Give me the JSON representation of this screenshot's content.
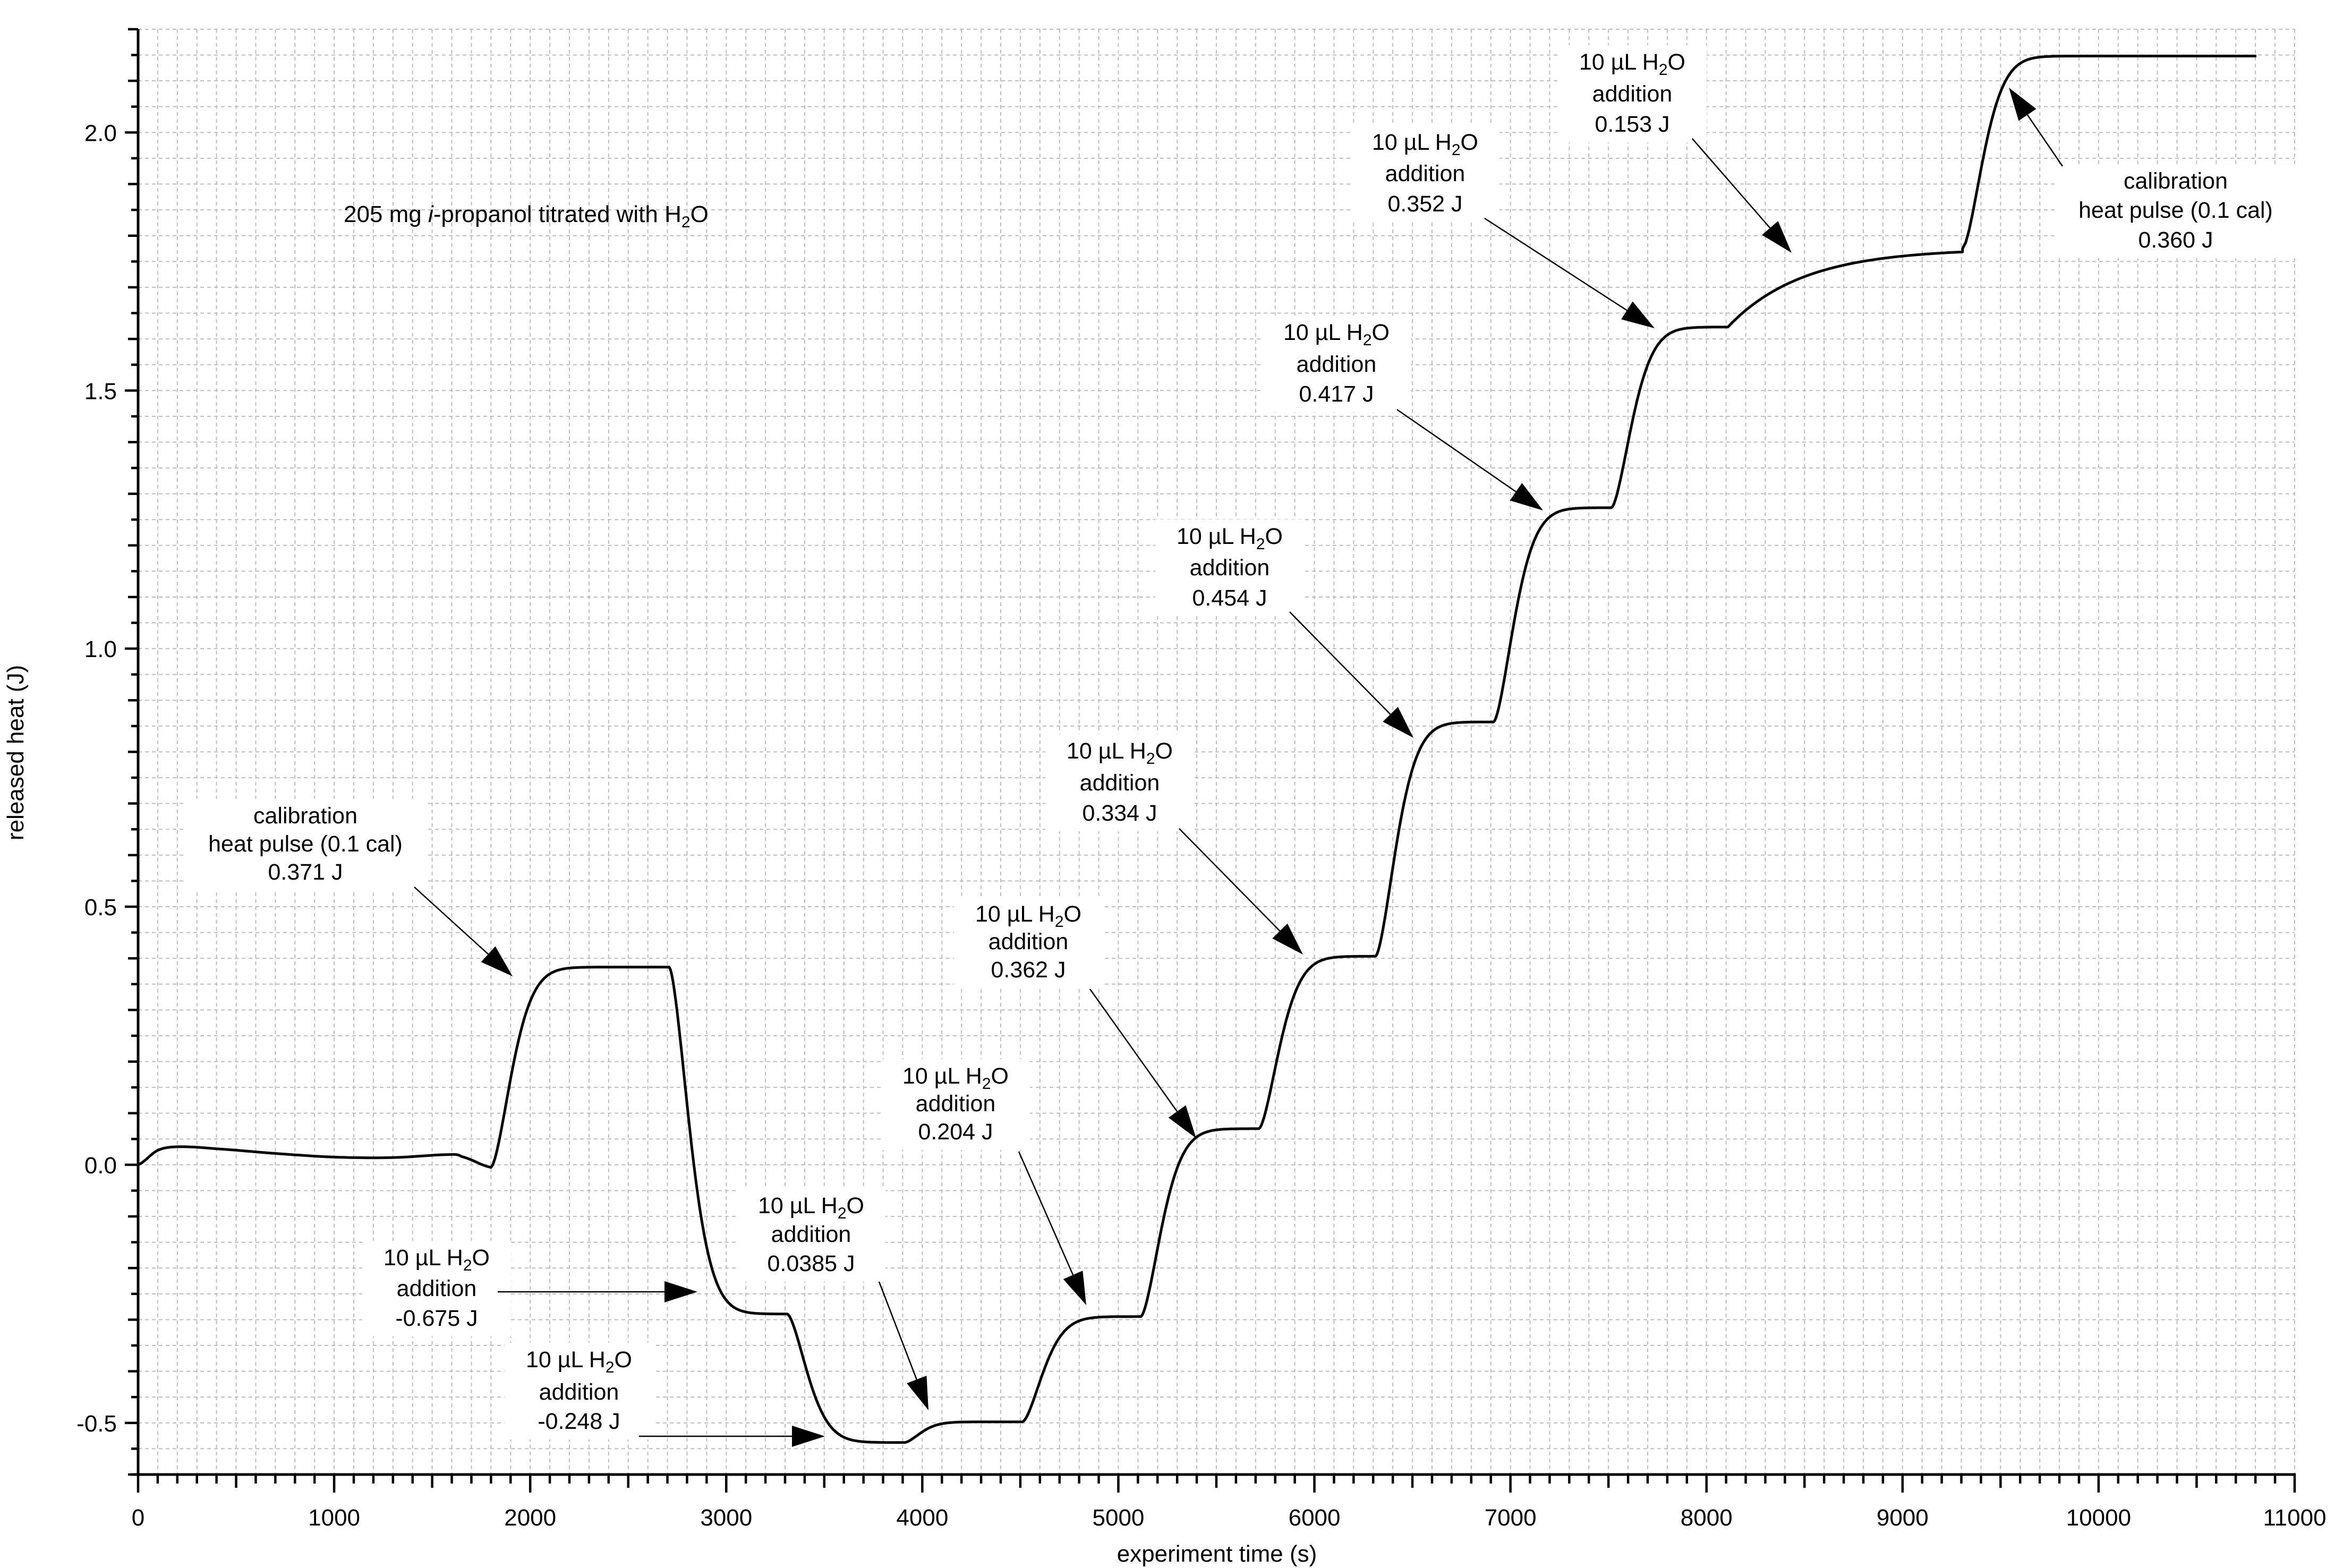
{
  "chart_data": {
    "type": "line",
    "title": "205 mg i-propanol titrated with H2O",
    "title_parts": {
      "prefix": "205 mg ",
      "italic": "i",
      "middle": "-propanol titrated with H",
      "subscript": "2",
      "suffix": "O"
    },
    "xlabel": "experiment time (s)",
    "ylabel": "released heat (J)",
    "xlim": [
      0,
      11000
    ],
    "ylim": [
      -0.6,
      2.2
    ],
    "grid": true,
    "x_ticks": [
      0,
      1000,
      2000,
      3000,
      4000,
      5000,
      6000,
      7000,
      8000,
      9000,
      10000,
      11000
    ],
    "x_tick_labels": [
      "0",
      "1000",
      "2000",
      "3000",
      "4000",
      "5000",
      "6000",
      "7000",
      "8000",
      "9000",
      "10000",
      "11000"
    ],
    "y_ticks": [
      -0.5,
      0.0,
      0.5,
      1.0,
      1.5,
      2.0
    ],
    "y_tick_labels": [
      "-0.5",
      "0.0",
      "0.5",
      "1.0",
      "1.5",
      "2.0"
    ],
    "x_minor_step": 100,
    "y_minor_step": 0.05,
    "series": [
      {
        "name": "released heat",
        "color": "#000000",
        "baseline": {
          "x": [
            0,
            100,
            200,
            400,
            700,
            1000,
            1300,
            1600,
            1650,
            1800
          ],
          "y": [
            0.0,
            0.028,
            0.035,
            0.031,
            0.022,
            0.015,
            0.014,
            0.02,
            0.016,
            -0.005
          ]
        },
        "steps": [
          {
            "start": 1800,
            "from": -0.005,
            "to": 0.383,
            "end": 2709
          },
          {
            "start": 2709,
            "from": 0.383,
            "to": -0.289,
            "end": 3311
          },
          {
            "start": 3311,
            "from": -0.289,
            "to": -0.538,
            "end": 3910
          },
          {
            "start": 3910,
            "from": -0.538,
            "to": -0.498,
            "end": 4511
          },
          {
            "start": 4511,
            "from": -0.498,
            "to": -0.294,
            "end": 5115
          },
          {
            "start": 5115,
            "from": -0.294,
            "to": 0.07,
            "end": 5717
          },
          {
            "start": 5717,
            "from": 0.07,
            "to": 0.404,
            "end": 6312
          },
          {
            "start": 6312,
            "from": 0.404,
            "to": 0.858,
            "end": 6914
          },
          {
            "start": 6914,
            "from": 0.858,
            "to": 1.273,
            "end": 7515
          },
          {
            "start": 7515,
            "from": 1.273,
            "to": 1.623,
            "end": 8109
          },
          {
            "start": 8109,
            "from": 1.623,
            "to": 1.775,
            "end": 9306
          },
          {
            "start": 9306,
            "from": 1.775,
            "to": 2.148,
            "end": 10805
          }
        ]
      }
    ],
    "annotations": [
      {
        "lines": [
          "calibration",
          "heat pulse (0.1 cal)",
          "0.371 J"
        ],
        "has_formula": false
      },
      {
        "lines": [
          "10 µL H",
          "addition",
          "-0.675 J"
        ],
        "has_formula": true
      },
      {
        "lines": [
          "10 µL H",
          "addition",
          "-0.248 J"
        ],
        "has_formula": true
      },
      {
        "lines": [
          "10 µL H",
          "addition",
          "0.0385 J"
        ],
        "has_formula": true
      },
      {
        "lines": [
          "10 µL H",
          "addition",
          "0.204 J"
        ],
        "has_formula": true
      },
      {
        "lines": [
          "10 µL H",
          "addition",
          "0.362 J"
        ],
        "has_formula": true
      },
      {
        "lines": [
          "10 µL H",
          "addition",
          "0.334 J"
        ],
        "has_formula": true
      },
      {
        "lines": [
          "10 µL H",
          "addition",
          "0.454 J"
        ],
        "has_formula": true
      },
      {
        "lines": [
          "10 µL H",
          "addition",
          "0.417 J"
        ],
        "has_formula": true
      },
      {
        "lines": [
          "10 µL H",
          "addition",
          "0.352 J"
        ],
        "has_formula": true
      },
      {
        "lines": [
          "10 µL H",
          "addition",
          "0.153 J"
        ],
        "has_formula": true
      },
      {
        "lines": [
          "calibration",
          "heat pulse  (0.1 cal)",
          "0.360 J"
        ],
        "has_formula": false
      }
    ],
    "formula_subscript": "2",
    "formula_suffix": "O"
  }
}
